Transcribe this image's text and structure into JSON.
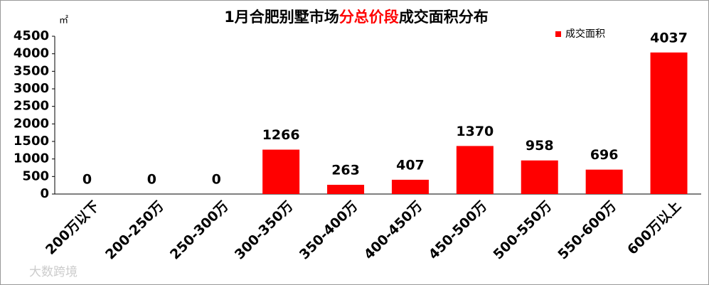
{
  "chart_data": {
    "type": "bar",
    "title": [
      {
        "text": "1月合肥别墅市场",
        "color": "#000000"
      },
      {
        "text": "分总价段",
        "color": "#ff0000"
      },
      {
        "text": "成交面积分布",
        "color": "#000000"
      }
    ],
    "y_unit": "㎡",
    "watermark": "大数跨境",
    "categories": [
      "200万以下",
      "200-250万",
      "250-300万",
      "300-350万",
      "350-400万",
      "400-450万",
      "450-500万",
      "500-550万",
      "550-600万",
      "600万以上"
    ],
    "series": [
      {
        "name": "成交面积",
        "color": "#ff0000",
        "values": [
          0,
          0,
          0,
          1266,
          263,
          407,
          1370,
          958,
          696,
          4037
        ]
      }
    ],
    "ylim": [
      0,
      4500
    ],
    "yticks": [
      0,
      500,
      1000,
      1500,
      2000,
      2500,
      3000,
      3500,
      4000,
      4500
    ],
    "legend": "top-right"
  }
}
